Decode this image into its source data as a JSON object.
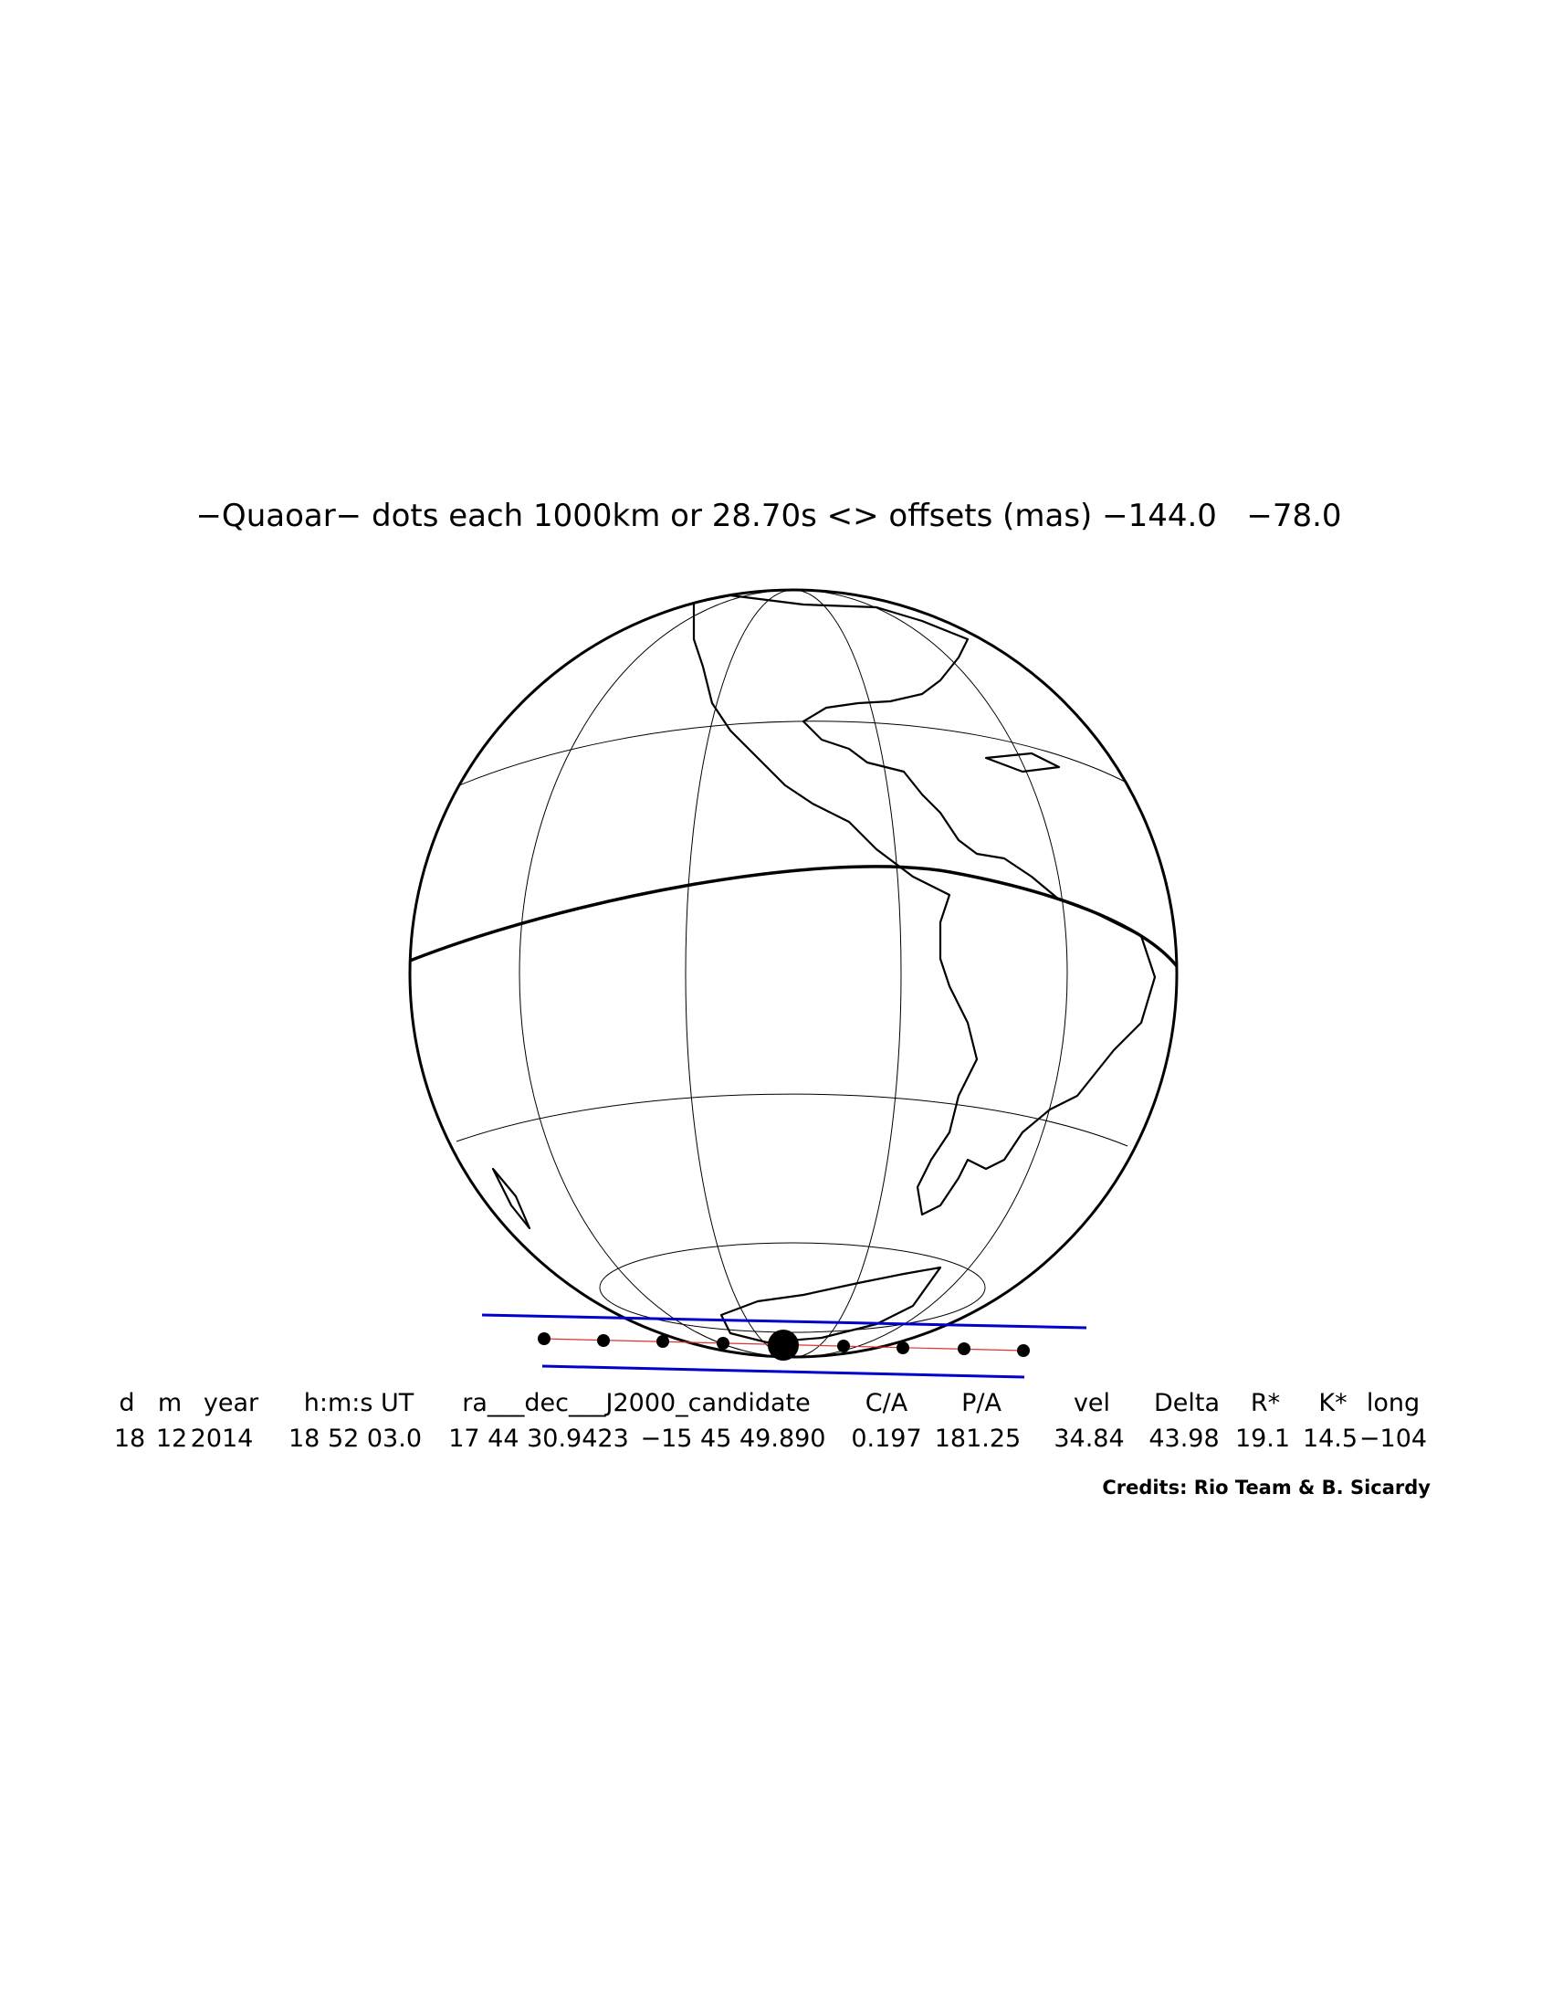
{
  "title": "−Quaoar− dots each 1000km or 28.70s <> offsets (mas) −144.0   −78.0",
  "table": {
    "headers": [
      "d",
      "m",
      "year",
      "h:m:s UT",
      "ra___dec___J2000_candidate",
      "C/A",
      "P/A",
      "vel",
      "Delta",
      "R*",
      "K*",
      "long"
    ],
    "values": [
      "18",
      "12",
      "2014",
      "18 52 03.0",
      "17 44 30.9423",
      "−15 45 49.890",
      "0.197",
      "181.25",
      "34.84",
      "43.98",
      "19.1",
      "14.5",
      "−104"
    ]
  },
  "credits": "Credits: Rio Team & B. Sicardy"
}
